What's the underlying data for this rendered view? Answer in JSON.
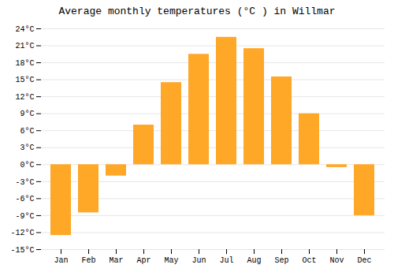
{
  "chart_data": {
    "type": "bar",
    "title": "Average monthly temperatures (°C ) in Willmar",
    "categories": [
      "Jan",
      "Feb",
      "Mar",
      "Apr",
      "May",
      "Jun",
      "Jul",
      "Aug",
      "Sep",
      "Oct",
      "Nov",
      "Dec"
    ],
    "values": [
      -12.5,
      -8.5,
      -2.0,
      7.0,
      14.5,
      19.5,
      22.5,
      20.5,
      15.5,
      9.0,
      -0.5,
      -9.0
    ],
    "color": "#FFA726",
    "ylim": [
      -15,
      24
    ],
    "yticks": [
      {
        "value": -15,
        "label": "-15°C"
      },
      {
        "value": -12,
        "label": "-12°C"
      },
      {
        "value": -9,
        "label": "-9°C"
      },
      {
        "value": -6,
        "label": "-6°C"
      },
      {
        "value": -3,
        "label": "-3°C"
      },
      {
        "value": 0,
        "label": "0°C"
      },
      {
        "value": 3,
        "label": "3°C"
      },
      {
        "value": 6,
        "label": "6°C"
      },
      {
        "value": 9,
        "label": "9°C"
      },
      {
        "value": 12,
        "label": "12°C"
      },
      {
        "value": 15,
        "label": "15°C"
      },
      {
        "value": 18,
        "label": "18°C"
      },
      {
        "value": 21,
        "label": "21°C"
      },
      {
        "value": 24,
        "label": "24°C"
      }
    ],
    "grid": true
  }
}
